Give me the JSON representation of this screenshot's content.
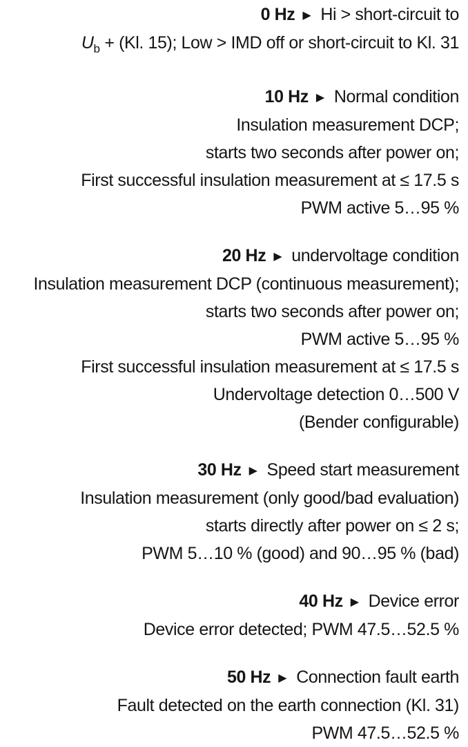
{
  "page": {
    "background": "#ffffff",
    "text_color": "#151515",
    "arrow_icon": "▶"
  },
  "sections": [
    {
      "frequency": "0 Hz",
      "title": "Hi > short-circuit to",
      "details": [
        [
          {
            "t": "U",
            "style": "italic"
          },
          {
            "t": "b",
            "style": "sub"
          },
          {
            "t": " + (Kl. 15); Low > IMD off or short-circuit to Kl. 31"
          }
        ]
      ]
    },
    {
      "frequency": "10 Hz",
      "title": "Normal condition",
      "details": [
        "Insulation measurement DCP;",
        "starts two seconds after power on;",
        "First successful insulation measurement at ≤ 17.5 s",
        "PWM active 5…95 %"
      ]
    },
    {
      "frequency": "20 Hz",
      "title": "undervoltage condition",
      "details": [
        "Insulation measurement DCP (continuous measurement);",
        "starts two seconds after power on;",
        "PWM active 5…95 %",
        "First successful insulation measurement at ≤ 17.5 s",
        "Undervoltage detection 0…500 V",
        "(Bender configurable)"
      ]
    },
    {
      "frequency": "30 Hz",
      "title": "Speed start measurement",
      "details": [
        "Insulation measurement (only good/bad evaluation)",
        "starts directly after power on ≤ 2 s;",
        "PWM 5…10 % (good) and 90…95 % (bad)"
      ]
    },
    {
      "frequency": "40 Hz",
      "title": "Device error",
      "details": [
        "Device error detected; PWM 47.5…52.5 %"
      ]
    },
    {
      "frequency": "50 Hz",
      "title": "Connection fault earth",
      "details": [
        "Fault detected on the earth connection (Kl. 31)",
        "PWM 47.5…52.5 %"
      ]
    }
  ]
}
